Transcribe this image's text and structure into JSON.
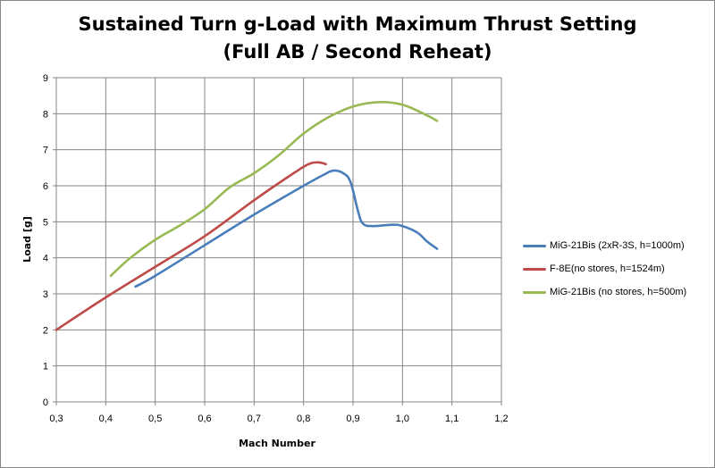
{
  "chart_data": {
    "type": "line",
    "title": "Sustained Turn g-Load with Maximum Thrust Setting (Full AB / Second Reheat)",
    "xlabel": "Mach Number",
    "ylabel": "Load [g]",
    "xlim": [
      0.3,
      1.2
    ],
    "ylim": [
      0,
      9
    ],
    "xticks": [
      "0,3",
      "0,4",
      "0,5",
      "0,6",
      "0,7",
      "0,8",
      "0,9",
      "1,0",
      "1,1",
      "1,2"
    ],
    "yticks": [
      "0",
      "1",
      "2",
      "3",
      "4",
      "5",
      "6",
      "7",
      "8",
      "9"
    ],
    "grid": true,
    "legend_position": "right",
    "series": [
      {
        "name": "MiG-21Bis (2xR-3S, h=1000m)",
        "color": "#4a7ebb",
        "x": [
          0.46,
          0.5,
          0.6,
          0.7,
          0.8,
          0.84,
          0.86,
          0.88,
          0.895,
          0.91,
          0.92,
          0.94,
          0.98,
          1.0,
          1.03,
          1.05,
          1.07
        ],
        "y": [
          3.2,
          3.5,
          4.35,
          5.2,
          6.0,
          6.3,
          6.42,
          6.35,
          6.1,
          5.3,
          4.95,
          4.88,
          4.92,
          4.88,
          4.7,
          4.45,
          4.25
        ]
      },
      {
        "name": "F-8E(no stores, h=1524m)",
        "color": "#be4b48",
        "x": [
          0.3,
          0.4,
          0.5,
          0.6,
          0.7,
          0.78,
          0.81,
          0.83,
          0.845
        ],
        "y": [
          2.0,
          2.9,
          3.75,
          4.6,
          5.6,
          6.35,
          6.6,
          6.65,
          6.6
        ]
      },
      {
        "name": "MiG-21Bis (no stores, h=500m)",
        "color": "#98b954",
        "x": [
          0.41,
          0.45,
          0.5,
          0.55,
          0.6,
          0.65,
          0.7,
          0.75,
          0.8,
          0.85,
          0.9,
          0.95,
          1.0,
          1.05,
          1.07
        ],
        "y": [
          3.5,
          4.0,
          4.5,
          4.9,
          5.35,
          5.95,
          6.35,
          6.85,
          7.45,
          7.9,
          8.2,
          8.32,
          8.25,
          7.95,
          7.8
        ]
      }
    ]
  }
}
